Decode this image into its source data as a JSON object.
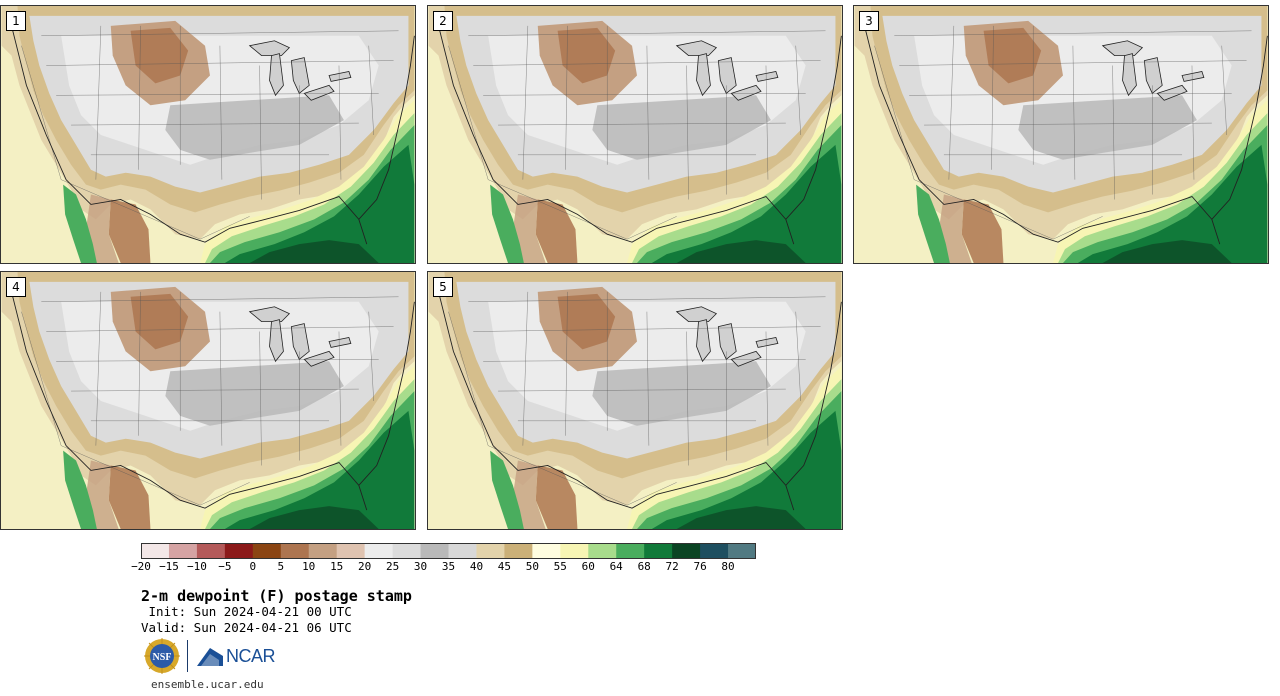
{
  "panels": [
    {
      "label": "1"
    },
    {
      "label": "2"
    },
    {
      "label": "3"
    },
    {
      "label": "4"
    },
    {
      "label": "5"
    }
  ],
  "colorbar": {
    "ticks": [
      "−20",
      "−15",
      "−10",
      "−5",
      "0",
      "5",
      "10",
      "15",
      "20",
      "25",
      "30",
      "35",
      "40",
      "45",
      "50",
      "55",
      "60",
      "64",
      "68",
      "72",
      "76",
      "80"
    ],
    "colors": [
      "#f3e7e7",
      "#d5a3a3",
      "#b45a5a",
      "#8c1a1a",
      "#8b4513",
      "#ad7550",
      "#c4a082",
      "#dfc3b0",
      "#ececec",
      "#dcdcdc",
      "#b9b9b9",
      "#d8d8d8",
      "#e3d3ab",
      "#cbb078",
      "#fffde0",
      "#f7f5b4",
      "#a8dc8c",
      "#4aad5e",
      "#117a3a",
      "#0b4423",
      "#1e4f60",
      "#517a82"
    ]
  },
  "title": "2-m dewpoint (F) postage stamp",
  "init": " Init: Sun 2024-04-21 00 UTC",
  "valid": "Valid: Sun 2024-04-21 06 UTC",
  "logos": {
    "nsf": "NSF",
    "ncar": "NCAR"
  },
  "website": "ensemble.ucar.edu"
}
